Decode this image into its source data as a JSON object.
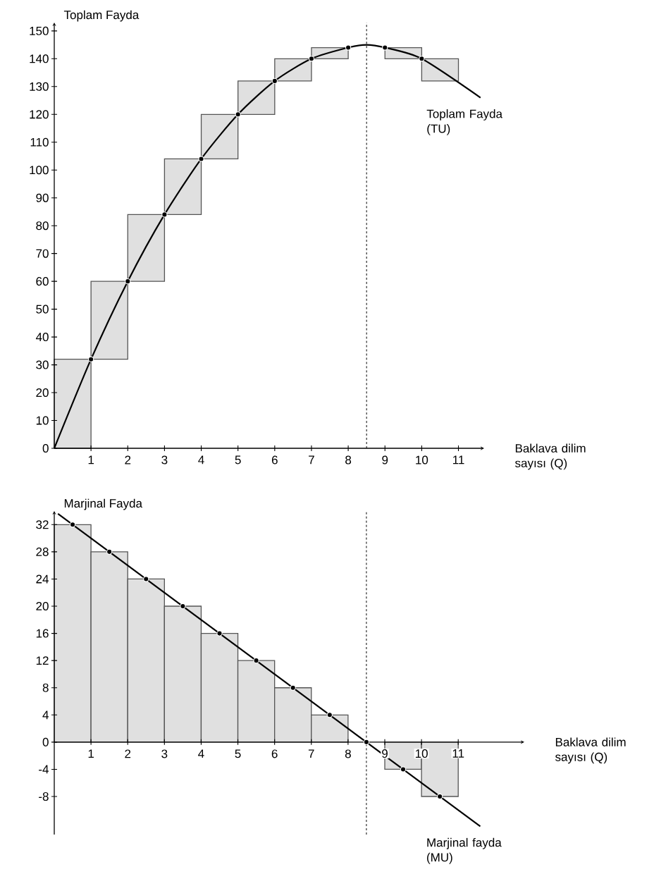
{
  "chart_data": [
    {
      "type": "bar",
      "ylabel": "Toplam Fayda",
      "xlabel": "Baklava dilim sayısı (Q)",
      "xlim": [
        0,
        11.7
      ],
      "ylim": [
        0,
        153
      ],
      "xticks": [
        1,
        2,
        3,
        4,
        5,
        6,
        7,
        8,
        9,
        10,
        11
      ],
      "yticks": [
        0,
        10,
        20,
        30,
        40,
        50,
        60,
        70,
        80,
        90,
        100,
        110,
        120,
        130,
        140,
        150
      ],
      "grid": false,
      "ref_lines": [
        {
          "axis": "x",
          "value": 8.5,
          "line_style": "dashed",
          "color": "#000000"
        }
      ],
      "series": [
        {
          "x": [
            0.5,
            1.5,
            2.5,
            3.5,
            4.5,
            5.5,
            6.5,
            7.5,
            9.5,
            10.5
          ],
          "base": [
            0,
            32,
            60,
            84,
            104,
            120,
            132,
            140,
            144,
            140
          ],
          "values": [
            32,
            28,
            24,
            20,
            16,
            12,
            8,
            4,
            -4,
            -8
          ],
          "color": "#555555"
        },
        {
          "type": "line",
          "name": "Toplam Fayda (TU)",
          "x": [
            0,
            1,
            2,
            3,
            4,
            5,
            6,
            7,
            8,
            8.5,
            9,
            10,
            11.6
          ],
          "values": [
            0,
            32,
            60,
            84,
            104,
            120,
            132,
            140,
            144,
            145,
            144,
            140,
            126
          ],
          "color": "#000000",
          "marker": "none"
        },
        {
          "type": "scatter",
          "x": [
            1,
            2,
            3,
            4,
            5,
            6,
            7,
            8,
            9,
            10
          ],
          "values": [
            32,
            60,
            84,
            104,
            120,
            132,
            140,
            144,
            144,
            140
          ],
          "color": "#000000",
          "marker": "circle"
        }
      ]
    },
    {
      "type": "bar",
      "ylabel": "Marjinal Fayda",
      "xlabel": "Baklava dilim sayısı (Q)",
      "xlim": [
        0,
        12.8
      ],
      "ylim": [
        -13.6,
        34
      ],
      "xticks": [
        1,
        2,
        3,
        4,
        5,
        6,
        7,
        8,
        9,
        10,
        11
      ],
      "yticks": [
        -8,
        -4,
        0,
        4,
        8,
        12,
        16,
        20,
        24,
        28,
        32
      ],
      "grid": false,
      "ref_lines": [
        {
          "axis": "x",
          "value": 8.5,
          "line_style": "dashed",
          "color": "#000000"
        }
      ],
      "series": [
        {
          "x": [
            0.5,
            1.5,
            2.5,
            3.5,
            4.5,
            5.5,
            6.5,
            7.5,
            9.5,
            10.5
          ],
          "values": [
            32,
            28,
            24,
            20,
            16,
            12,
            8,
            4,
            -4,
            -8
          ],
          "color": "#555555"
        },
        {
          "type": "line",
          "name": "Marjinal fayda (MU)",
          "x": [
            0.1,
            11.6
          ],
          "values": [
            33.6,
            -12.4
          ],
          "color": "#000000",
          "marker": "none"
        },
        {
          "type": "scatter",
          "x": [
            0.5,
            1.5,
            2.5,
            3.5,
            4.5,
            5.5,
            6.5,
            7.5,
            8.5,
            9.5,
            10.5
          ],
          "values": [
            32,
            28,
            24,
            20,
            16,
            12,
            8,
            4,
            0,
            -4,
            -8
          ],
          "color": "#000000",
          "marker": "circle"
        }
      ]
    }
  ]
}
